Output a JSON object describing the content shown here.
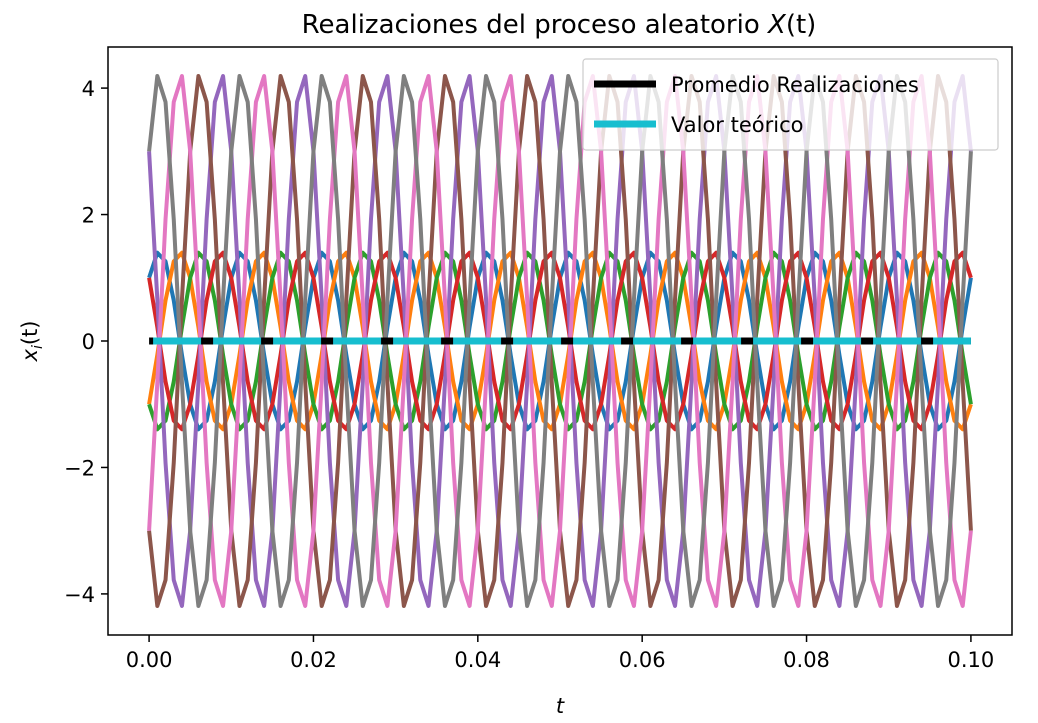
{
  "chart_data": {
    "type": "line",
    "title": "Realizaciones del proceso aleatorio ",
    "title_var": "X",
    "title_arg": "(t)",
    "xlabel": "t",
    "ylabel_main": "x",
    "ylabel_sub": "i",
    "ylabel_arg": "(t)",
    "xlim": [
      -0.005,
      0.105
    ],
    "ylim": [
      -4.65,
      4.65
    ],
    "xticks": [
      0.0,
      0.02,
      0.04,
      0.06,
      0.08,
      0.1
    ],
    "xtick_labels": [
      "0.00",
      "0.02",
      "0.04",
      "0.06",
      "0.08",
      "0.10"
    ],
    "yticks": [
      -4,
      -2,
      0,
      2,
      4
    ],
    "ytick_labels": [
      "−4",
      "−2",
      "0",
      "2",
      "4"
    ],
    "grid": false,
    "legend_position": "top-right",
    "frequency_hz": 100,
    "t_start": 0.0,
    "t_end": 0.1,
    "realizations": [
      {
        "amplitude": 1.414,
        "phase_deg": -45,
        "color": "#1f77b4"
      },
      {
        "amplitude": 1.414,
        "phase_deg": -135,
        "color": "#ff7f0e"
      },
      {
        "amplitude": 1.414,
        "phase_deg": 135,
        "color": "#2ca02c"
      },
      {
        "amplitude": 1.414,
        "phase_deg": 45,
        "color": "#d62728"
      },
      {
        "amplitude": 4.243,
        "phase_deg": 45,
        "color": "#9467bd"
      },
      {
        "amplitude": 4.243,
        "phase_deg": 135,
        "color": "#8c564b"
      },
      {
        "amplitude": 4.243,
        "phase_deg": -135,
        "color": "#e377c2"
      },
      {
        "amplitude": 4.243,
        "phase_deg": -45,
        "color": "#7f7f7f"
      }
    ],
    "legend": [
      {
        "label": "Promedio Realizaciones",
        "color": "#000000",
        "value": 0
      },
      {
        "label": "Valor teórico",
        "color": "#17becf",
        "value": 0
      }
    ]
  }
}
